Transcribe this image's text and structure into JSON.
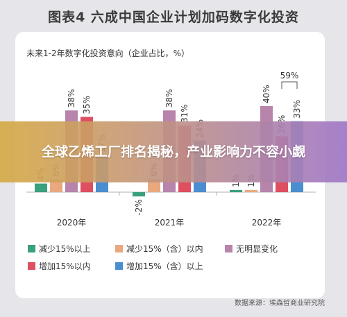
{
  "header": {
    "title": "图表4  六成中国企业计划加码数字化投资"
  },
  "overlay": {
    "headline": "全球乙烯工厂排名揭秘，产业影响力不容小觑"
  },
  "source": "数据来源：埃森哲商业研究院",
  "chart_data": {
    "type": "bar",
    "title": "未来1-2年数字化投资意向（企业占比，%）",
    "categories": [
      "2020年",
      "2021年",
      "2022年"
    ],
    "ylim": [
      -5,
      45
    ],
    "grid": false,
    "legend_position": "bottom",
    "series": [
      {
        "name": "减少15%以上",
        "color": "#3aa07e",
        "values": [
          4,
          -2,
          1
        ]
      },
      {
        "name": "减少15%（含）以内",
        "color": "#e9a87e",
        "values": [
          6,
          6,
          1
        ]
      },
      {
        "name": "无明显变化",
        "color": "#b784ab",
        "values": [
          38,
          38,
          40
        ]
      },
      {
        "name": "增加15%以内",
        "color": "#de4f61",
        "values": [
          35,
          31,
          26
        ]
      },
      {
        "name": "增加15%（含）以上",
        "color": "#4a8ed0",
        "values": [
          17,
          24,
          33
        ]
      }
    ],
    "value_labels": [
      [
        "4%",
        "6%",
        "38%",
        "35%",
        "17%"
      ],
      [
        "-2%",
        "6%",
        "38%",
        "31%",
        "24%"
      ],
      [
        "1%",
        "1%",
        "40%",
        "26%",
        "33%"
      ]
    ],
    "annotation": {
      "label": "59%",
      "category": "2022年",
      "spans": [
        "增加15%以内",
        "增加15%（含）以上"
      ]
    }
  }
}
